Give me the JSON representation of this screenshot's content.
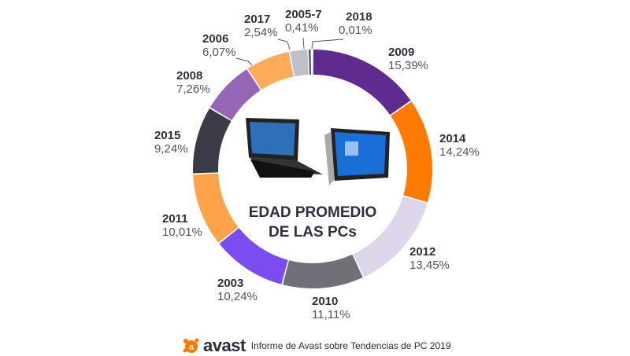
{
  "chart_data": {
    "type": "pie",
    "title": "EDAD PROMEDIO DE LAS PCs",
    "title_lines": [
      "EDAD PROMEDIO",
      "DE LAS PCs"
    ],
    "donut": true,
    "slices": [
      {
        "label": "2009",
        "value": 15.39,
        "text": "15,39%",
        "color": "#5f2b8f"
      },
      {
        "label": "2014",
        "value": 14.24,
        "text": "14,24%",
        "color": "#ff7a00"
      },
      {
        "label": "2012",
        "value": 13.45,
        "text": "13,45%",
        "color": "#ddd5ea"
      },
      {
        "label": "2010",
        "value": 11.11,
        "text": "11,11%",
        "color": "#707079"
      },
      {
        "label": "2003",
        "value": 10.24,
        "text": "10,24%",
        "color": "#7b4cf0"
      },
      {
        "label": "2011",
        "value": 10.01,
        "text": "10,01%",
        "color": "#ffa24c"
      },
      {
        "label": "2015",
        "value": 9.24,
        "text": "9,24%",
        "color": "#3b3a47"
      },
      {
        "label": "2008",
        "value": 7.26,
        "text": "7,26%",
        "color": "#9566b5"
      },
      {
        "label": "2006",
        "value": 6.07,
        "text": "6,07%",
        "color": "#ffa95a"
      },
      {
        "label": "2017",
        "value": 2.54,
        "text": "2,54%",
        "color": "#c0bfc8"
      },
      {
        "label": "2005-7",
        "value": 0.41,
        "text": "0,41%",
        "color": "#2a2f45"
      },
      {
        "label": "2018",
        "value": 0.01,
        "text": "0,01%",
        "color": "#f9b98a"
      }
    ]
  },
  "footer": {
    "brand": "avast",
    "text": "Informe de Avast sobre Tendencias de PC 2019",
    "brand_color": "#ff7800"
  }
}
